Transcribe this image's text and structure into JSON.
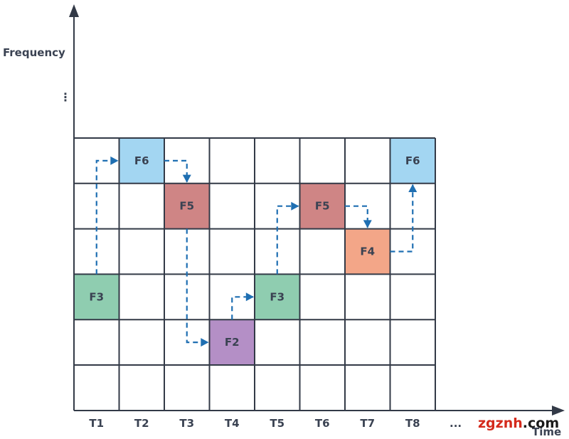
{
  "axis": {
    "y_label": "Frequency",
    "x_label": "Time",
    "y_ellipsis": "⋮",
    "x_ellipsis": "..."
  },
  "time_slots": [
    "T1",
    "T2",
    "T3",
    "T4",
    "T5",
    "T6",
    "T7",
    "T8"
  ],
  "frequency_rows": 6,
  "hops": [
    {
      "time": "T1",
      "label": "F3",
      "row": 3,
      "color": "#8fcdb0"
    },
    {
      "time": "T2",
      "label": "F6",
      "row": 0,
      "color": "#a3d6f2"
    },
    {
      "time": "T3",
      "label": "F5",
      "row": 1,
      "color": "#cf8585"
    },
    {
      "time": "T4",
      "label": "F2",
      "row": 4,
      "color": "#b48fc6"
    },
    {
      "time": "T5",
      "label": "F3",
      "row": 3,
      "color": "#8fcdb0"
    },
    {
      "time": "T6",
      "label": "F5",
      "row": 1,
      "color": "#cf8585"
    },
    {
      "time": "T7",
      "label": "F4",
      "row": 2,
      "color": "#f3a688"
    },
    {
      "time": "T8",
      "label": "F6",
      "row": 0,
      "color": "#a3d6f2"
    }
  ],
  "colors": {
    "grid": "#333a47",
    "path": "#1f6fb2",
    "text": "#3a4252",
    "watermark_dark": "#1a1a1a",
    "watermark_red": "#d42a1c"
  },
  "watermark": {
    "part1": "zgznh",
    "part2": ".com"
  }
}
